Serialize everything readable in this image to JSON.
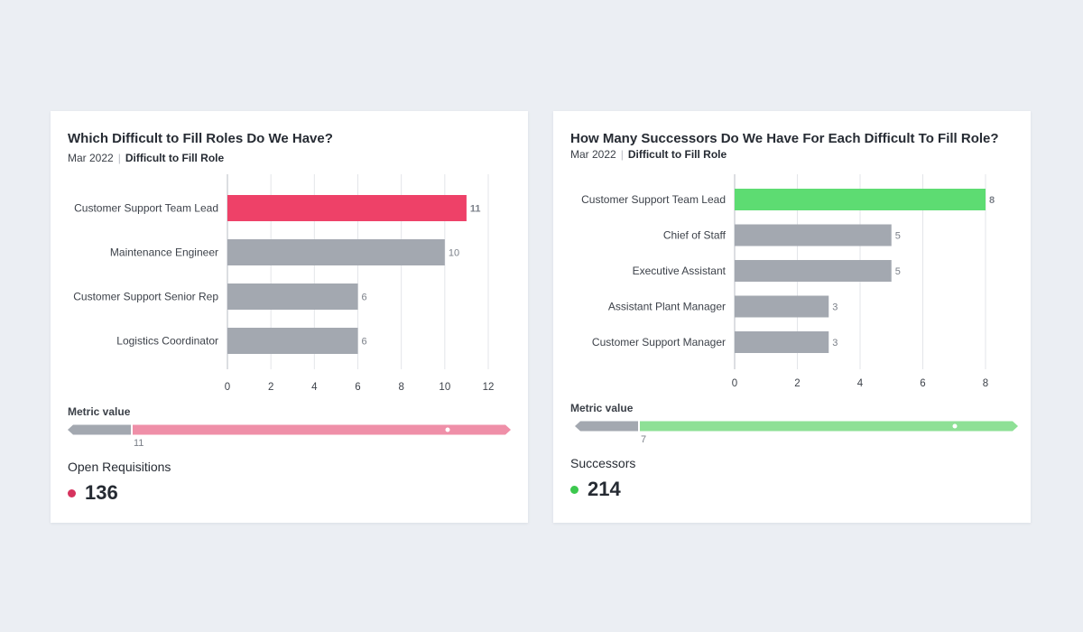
{
  "cards": [
    {
      "title": "Which Difficult to Fill Roles Do We Have?",
      "date": "Mar 2022",
      "subject": "Difficult to Fill Role",
      "metric_title": "Metric value",
      "metric_name": "Open Requisitions",
      "metric_value": "136",
      "colors": {
        "highlight": "#ee4168",
        "bar": "#a3a8b0",
        "scale": "#ef8fa8",
        "dot": "#d6335e"
      },
      "scale_marker": {
        "value": 11,
        "label": "11"
      }
    },
    {
      "title": "How Many Successors Do We Have For Each Difficult To Fill Role?",
      "date": "Mar 2022",
      "subject": "Difficult to Fill Role",
      "metric_title": "Metric value",
      "metric_name": "Successors",
      "metric_value": "214",
      "colors": {
        "highlight": "#5ddc72",
        "bar": "#a3a8b0",
        "scale": "#8ee096",
        "dot": "#3cc84e"
      },
      "scale_marker": {
        "value": 7,
        "label": "7"
      }
    }
  ],
  "chart_data": [
    {
      "type": "bar",
      "orientation": "horizontal",
      "title": "Which Difficult to Fill Roles Do We Have?",
      "categories": [
        "Customer Support Team Lead",
        "Maintenance Engineer",
        "Customer Support Senior Rep",
        "Logistics Coordinator"
      ],
      "values": [
        11,
        10,
        6,
        6
      ],
      "value_labels": [
        "11",
        "10",
        "6",
        "6"
      ],
      "highlight_index": 0,
      "xlim": [
        0,
        12
      ],
      "ticks": [
        0,
        2,
        4,
        6,
        8,
        10,
        12
      ],
      "tick_labels": [
        "0",
        "2",
        "4",
        "6",
        "8",
        "10",
        "12"
      ],
      "grid": true
    },
    {
      "type": "bar",
      "orientation": "horizontal",
      "title": "How Many Successors Do We Have For Each Difficult To Fill Role?",
      "categories": [
        "Customer Support Team Lead",
        "Chief of Staff",
        "Executive Assistant",
        "Assistant Plant Manager",
        "Customer Support Manager"
      ],
      "values": [
        8,
        5,
        5,
        3,
        3
      ],
      "value_labels": [
        "8",
        "5",
        "5",
        "3",
        "3"
      ],
      "highlight_index": 0,
      "xlim": [
        0,
        8
      ],
      "ticks": [
        0,
        2,
        4,
        6,
        8
      ],
      "tick_labels": [
        "0",
        "2",
        "4",
        "6",
        "8"
      ],
      "grid": true
    }
  ]
}
